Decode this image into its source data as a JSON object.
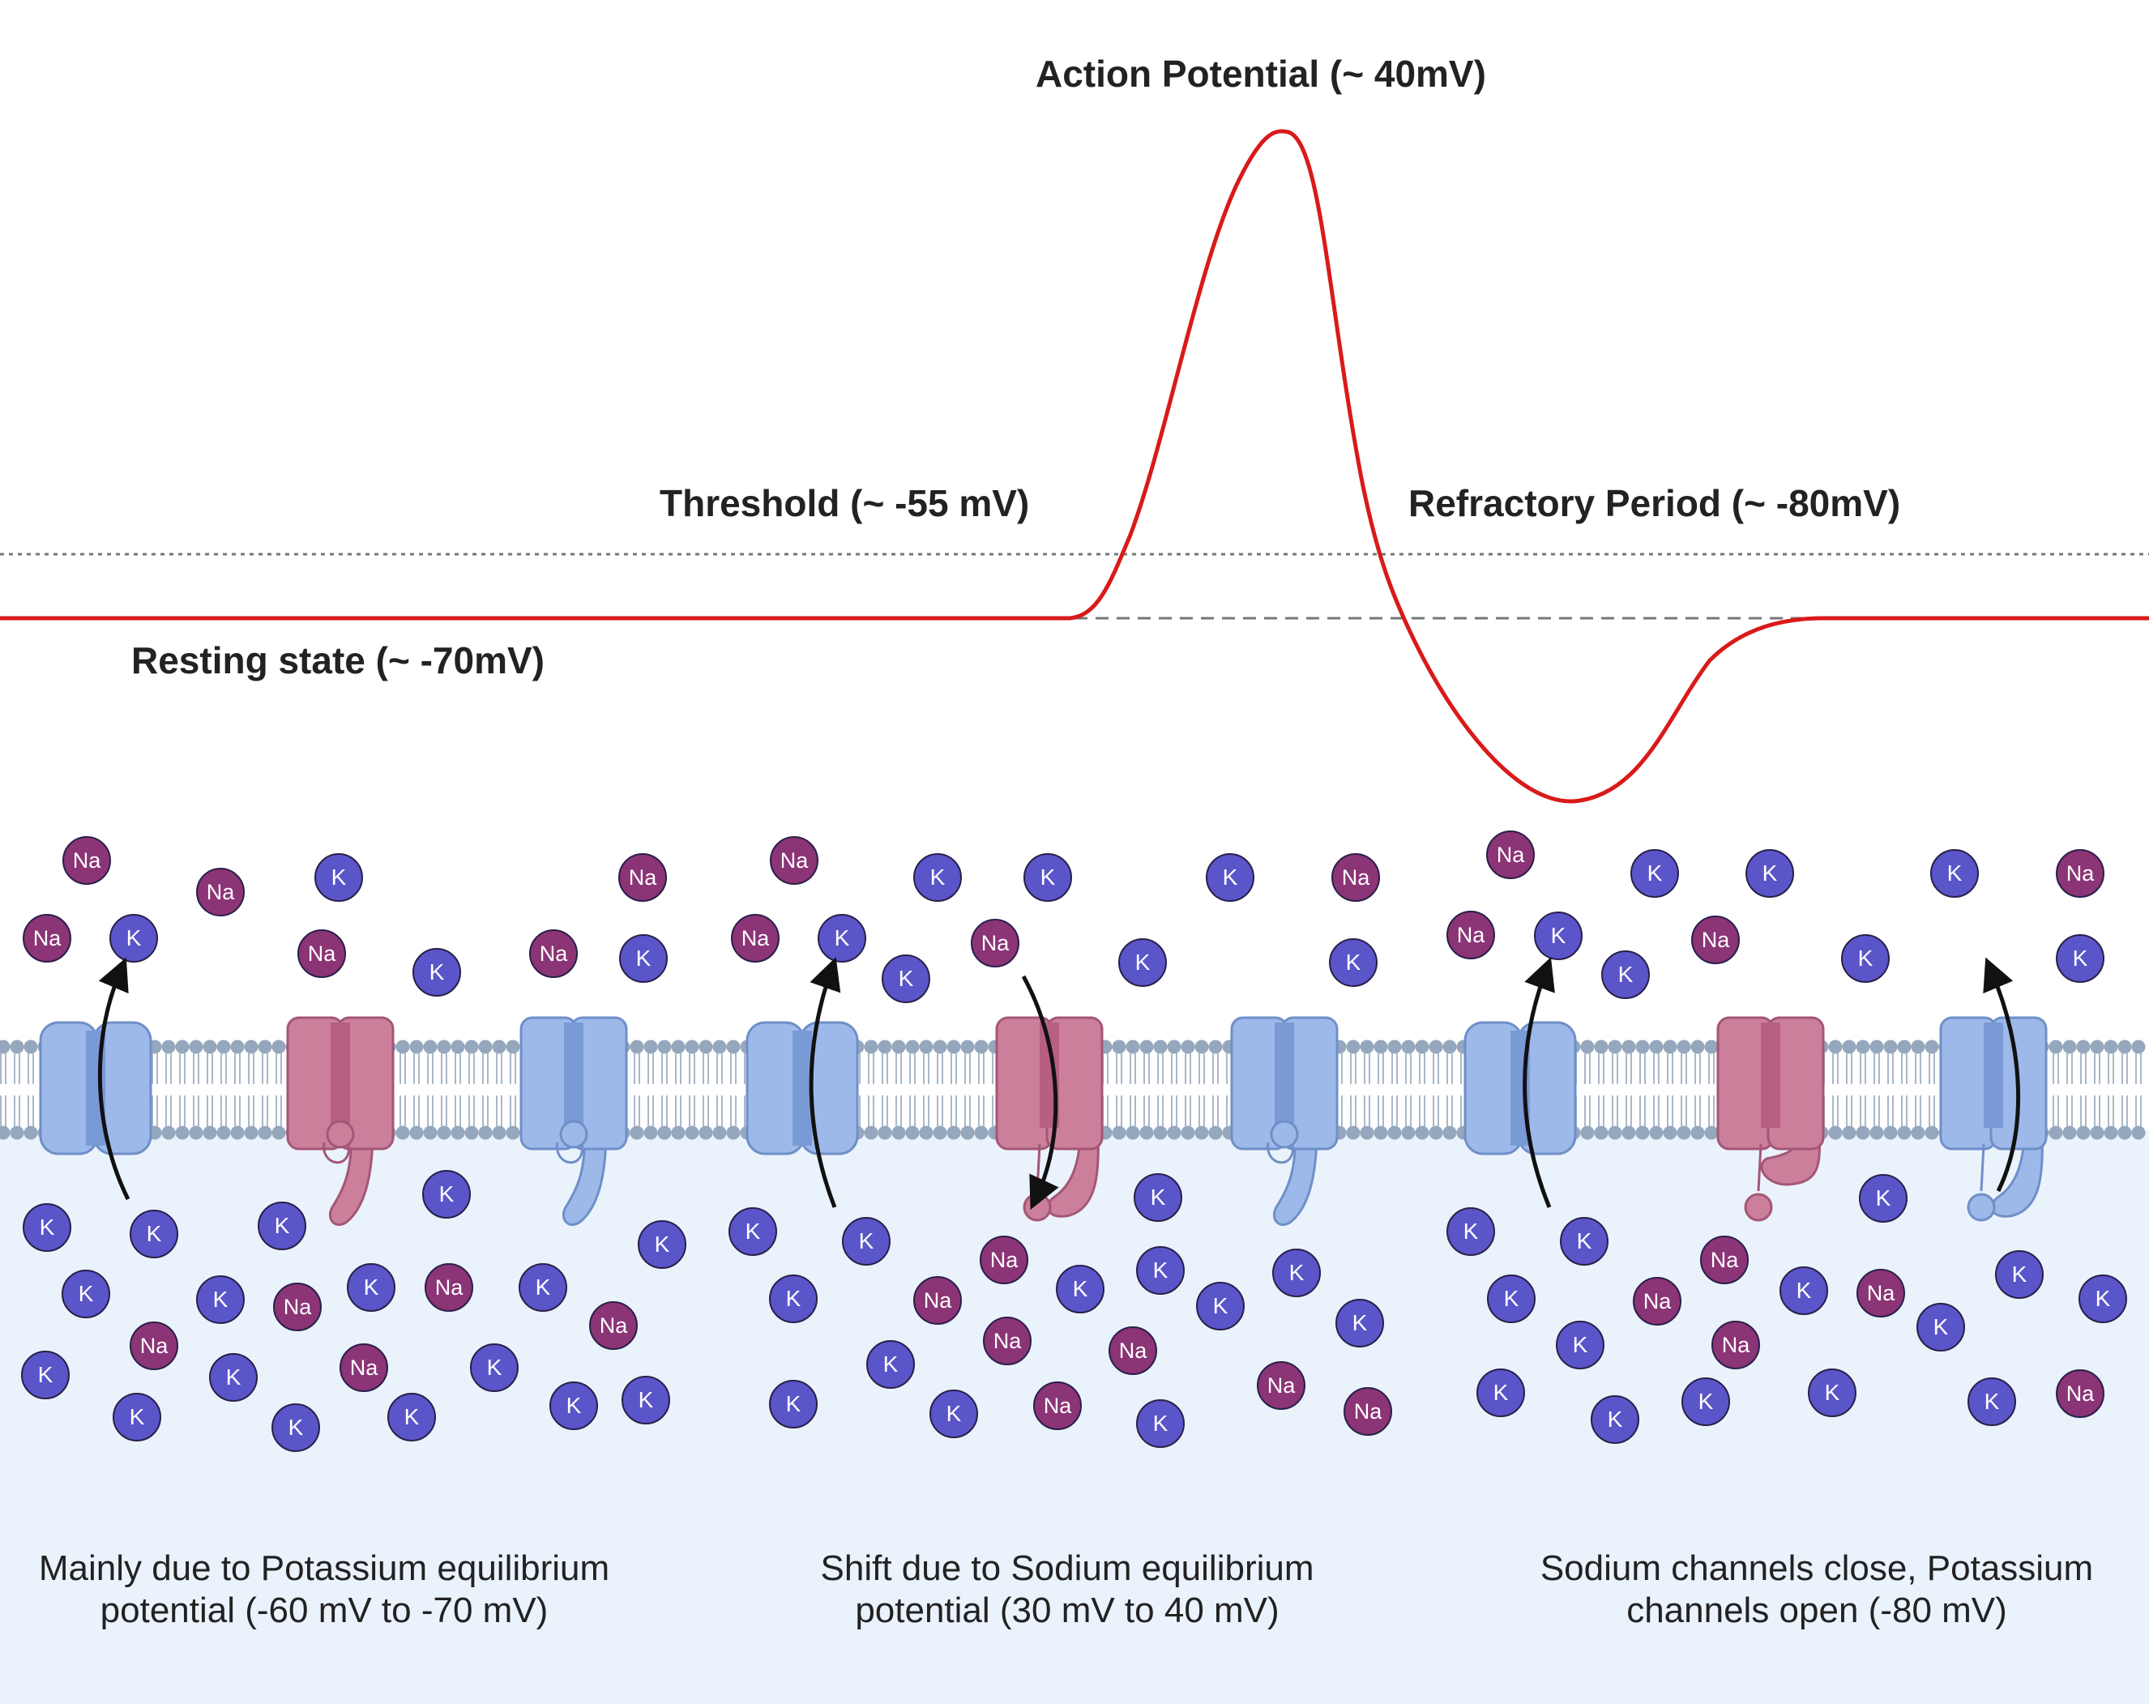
{
  "labels": {
    "action_potential": "Action Potential (~ 40mV)",
    "threshold": "Threshold (~ -55 mV)",
    "refractory": "Refractory Period (~ -80mV)",
    "resting": "Resting state (~ -70mV)"
  },
  "captions": {
    "left": [
      "Mainly due to Potassium equilibrium",
      "potential (-60 mV to -70 mV)"
    ],
    "middle": [
      "Shift due to Sodium equilibrium",
      "potential (30 mV to 40 mV)"
    ],
    "right": [
      "Sodium channels close, Potassium",
      "channels open (-80 mV)"
    ]
  },
  "ions": {
    "na": "Na",
    "k": "K"
  },
  "colors": {
    "curve": "#d91a1a",
    "na_ion": "#8b3476",
    "k_ion": "#5a55c9",
    "inside_bg": "#eaf2fb",
    "k_channel": "#9db9ea",
    "na_channel": "#cc7f9b",
    "membrane_head": "#95a7bc"
  }
}
